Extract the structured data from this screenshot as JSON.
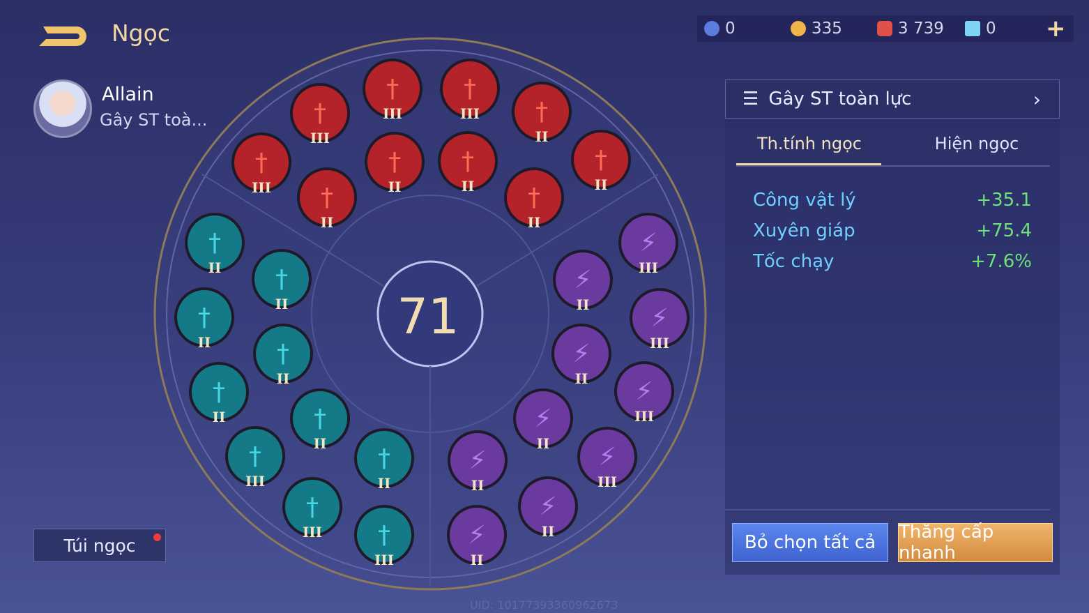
{
  "header": {
    "title": "Ngọc",
    "back_icon": "back-arrow-icon"
  },
  "hero": {
    "name": "Allain",
    "build": "Gây ST toà..."
  },
  "currency": [
    {
      "icon": "blue-coin-icon",
      "value": "0",
      "color": "#5b7de0"
    },
    {
      "icon": "gold-coin-icon",
      "value": "335",
      "color": "#f0b44a"
    },
    {
      "icon": "red-gem-icon",
      "value": "3 739",
      "color": "#e2504a"
    },
    {
      "icon": "blue-card-icon",
      "value": "0",
      "color": "#7fd3f5"
    }
  ],
  "level": "71",
  "bag": {
    "label": "Túi ngọc",
    "has_notification": true
  },
  "panel": {
    "build_name": "Gây ST toàn lực",
    "tabs": [
      {
        "label": "Th.tính ngọc",
        "active": true
      },
      {
        "label": "Hiện ngọc",
        "active": false
      }
    ],
    "stats": [
      {
        "name": "Công vật lý",
        "value": "+35.1"
      },
      {
        "name": "Xuyên giáp",
        "value": "+75.4"
      },
      {
        "name": "Tốc chạy",
        "value": "+7.6%"
      }
    ],
    "deselect_all": "Bỏ chọn tất cả",
    "quick_upgrade": "Thăng cấp nhanh"
  },
  "gem_colors": {
    "red": "#b5232a",
    "teal": "#157a88",
    "purple": "#6a3a9e"
  },
  "gems": {
    "red": [
      "III",
      "III",
      "III",
      "II",
      "III",
      "II",
      "II",
      "II",
      "II",
      "II"
    ],
    "teal": [
      "II",
      "II",
      "II",
      "II",
      "II",
      "II",
      "III",
      "II",
      "III",
      "III"
    ],
    "purple": [
      "III",
      "II",
      "III",
      "II",
      "III",
      "II",
      "III",
      "II",
      "II",
      "II"
    ]
  },
  "uid": "UID: 1017739336096267З"
}
